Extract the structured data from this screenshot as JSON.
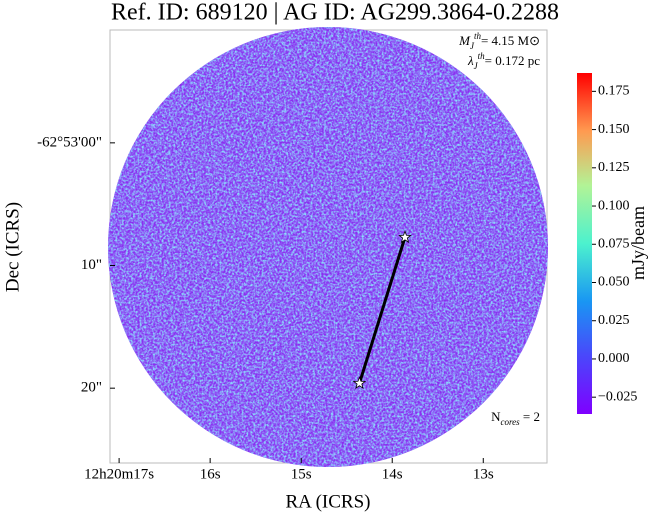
{
  "chart_data": {
    "type": "image",
    "title": "Ref. ID: 689120 | AG ID: AG299.3864-0.2288",
    "x_label": "RA (ICRS)",
    "y_label": "Dec (ICRS)",
    "xlim": [
      17.1,
      12.3
    ],
    "xticks": [
      {
        "value": 17,
        "label": "12h20m17s"
      },
      {
        "value": 16,
        "label": "16s"
      },
      {
        "value": 15,
        "label": "15s"
      },
      {
        "value": 14,
        "label": "14s"
      },
      {
        "value": 13,
        "label": "13s"
      }
    ],
    "ylim": [
      -9.2,
      26.1
    ],
    "yticks": [
      {
        "value": 0,
        "label": "-62°53'00\""
      },
      {
        "value": 10,
        "label": "10\""
      },
      {
        "value": 20,
        "label": "20\""
      }
    ],
    "cores": {
      "x": [
        13.86,
        14.36
      ],
      "y": [
        7.7,
        19.6
      ]
    },
    "annotations": [
      [
        "M",
        "J",
        "th",
        "= 4.15 M⊙"
      ],
      [
        "λ",
        "J",
        "th",
        "= 0.172 pc"
      ],
      [
        "N",
        "cores",
        "",
        " = 2"
      ]
    ],
    "colorbar": {
      "label": "mJy/beam",
      "lim": [
        -0.036,
        0.187
      ],
      "ticks": [
        -0.025,
        0.0,
        0.025,
        0.05,
        0.075,
        0.1,
        0.125,
        0.15,
        0.175
      ],
      "tick_labels": [
        "−0.025",
        "0.000",
        "0.025",
        "0.050",
        "0.075",
        "0.100",
        "0.125",
        "0.150",
        "0.175"
      ]
    }
  }
}
